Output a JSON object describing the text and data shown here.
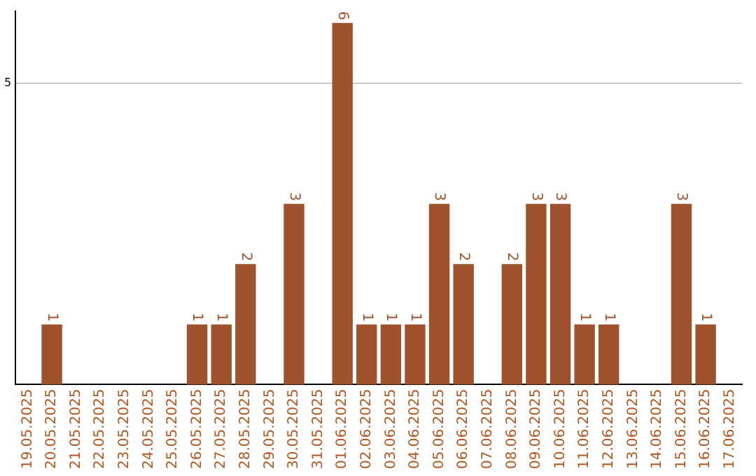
{
  "chart_data": {
    "type": "bar",
    "categories": [
      "19.05.2025",
      "20.05.2025",
      "21.05.2025",
      "22.05.2025",
      "23.05.2025",
      "24.05.2025",
      "25.05.2025",
      "26.05.2025",
      "27.05.2025",
      "28.05.2025",
      "29.05.2025",
      "30.05.2025",
      "31.05.2025",
      "01.06.2025",
      "02.06.2025",
      "03.06.2025",
      "04.06.2025",
      "05.06.2025",
      "06.06.2025",
      "07.06.2025",
      "08.06.2025",
      "09.06.2025",
      "10.06.2025",
      "11.06.2025",
      "12.06.2025",
      "13.06.2025",
      "14.06.2025",
      "15.06.2025",
      "16.06.2025",
      "17.06.2025"
    ],
    "values": [
      null,
      1,
      null,
      null,
      null,
      null,
      null,
      1,
      1,
      2,
      null,
      3,
      null,
      6,
      1,
      1,
      1,
      3,
      2,
      null,
      2,
      3,
      3,
      1,
      1,
      null,
      null,
      3,
      1,
      null
    ],
    "color": "#a0522d",
    "ylim": [
      0,
      6.2
    ],
    "yticks": [
      5
    ],
    "grid": "y",
    "data_labels": true
  }
}
